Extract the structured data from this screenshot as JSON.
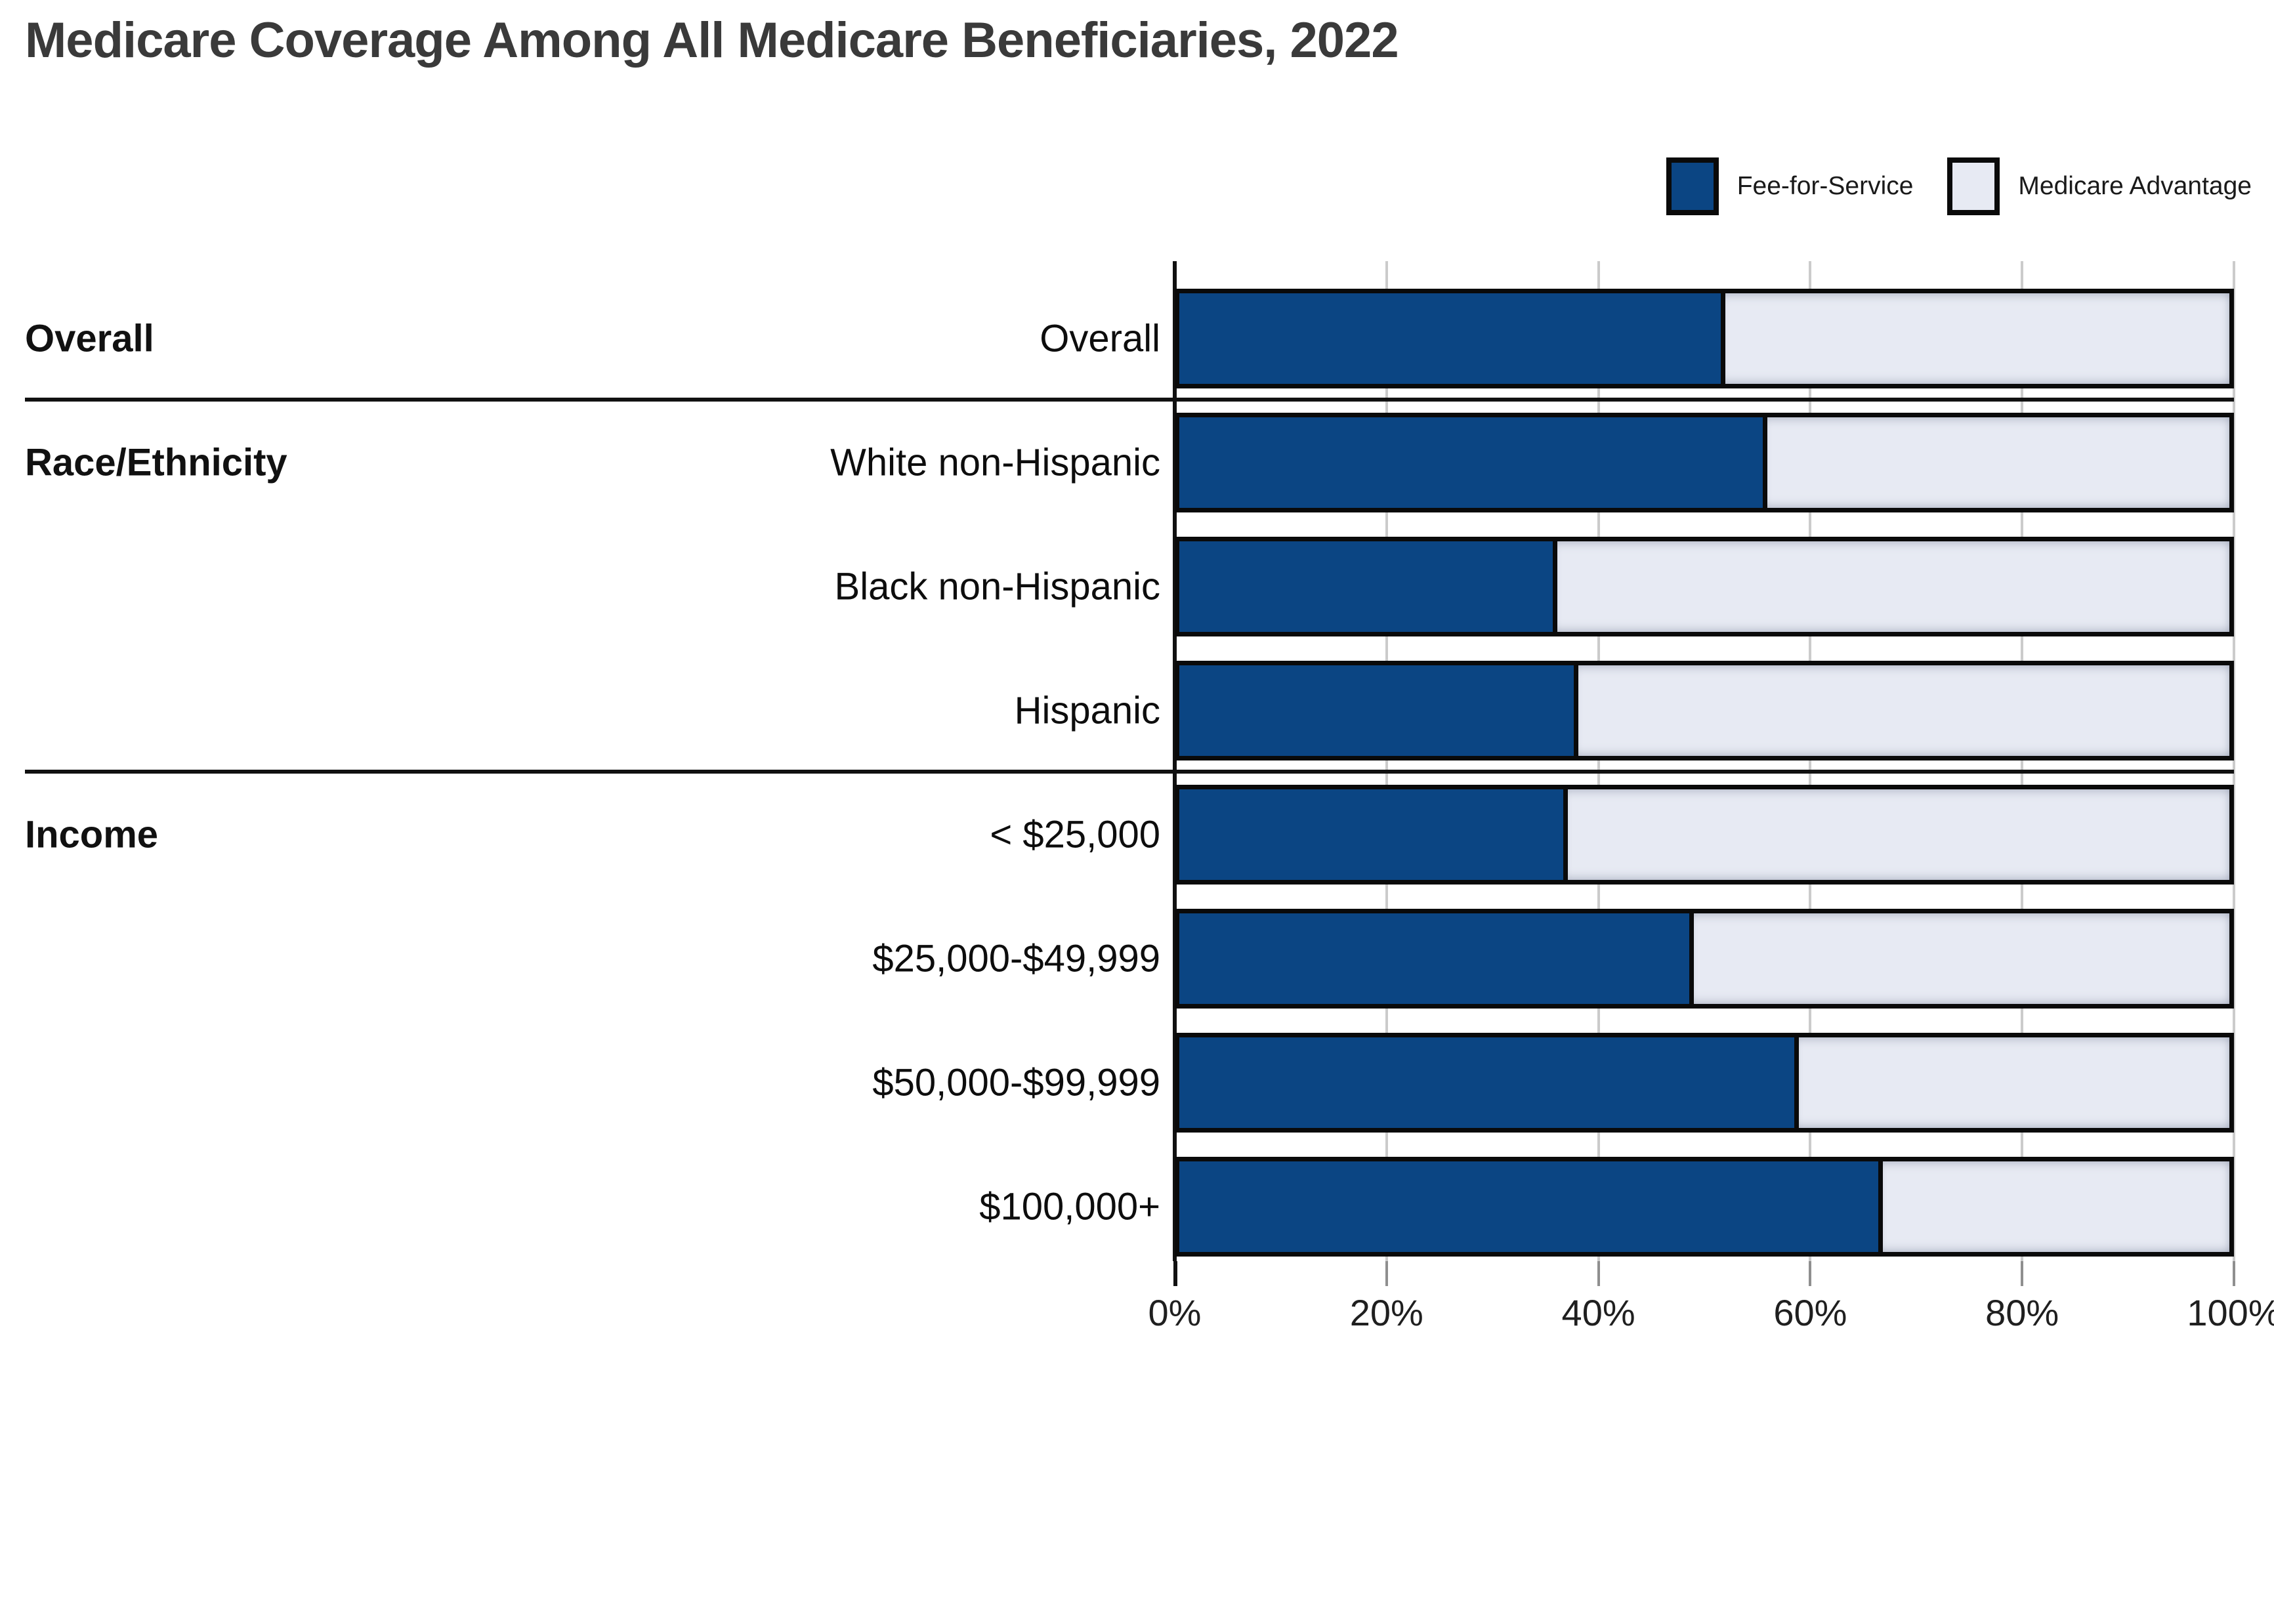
{
  "title": "Medicare Coverage Among All Medicare Beneficiaries, 2022",
  "legend": [
    {
      "label": "Fee-for-Service",
      "color": "#0B4583"
    },
    {
      "label": "Medicare Advantage",
      "color": "#E7EAF3"
    }
  ],
  "colors": {
    "fee_for_service": "#0B4583",
    "medicare_advantage": "#E7EAF3",
    "bar_border": "#0a0a0a",
    "gridline": "#cbcbcb",
    "axis_line": "#111111",
    "title_text": "#3a3a3a"
  },
  "chart_data": {
    "type": "bar",
    "orientation": "horizontal",
    "stacked": true,
    "title": "Medicare Coverage Among All Medicare Beneficiaries, 2022",
    "xlabel": "",
    "ylabel": "",
    "xlim": [
      0,
      100
    ],
    "x_tick_labels": [
      "0%",
      "20%",
      "40%",
      "60%",
      "80%",
      "100%"
    ],
    "x_tick_values": [
      0,
      20,
      40,
      60,
      80,
      100
    ],
    "grid": true,
    "legend_position": "top-right",
    "series_names": [
      "Fee-for-Service",
      "Medicare Advantage"
    ],
    "groups": [
      {
        "name": "Overall",
        "rows": [
          {
            "label": "Overall",
            "fee_for_service": 52,
            "medicare_advantage": 48
          }
        ]
      },
      {
        "name": "Race/Ethnicity",
        "rows": [
          {
            "label": "White non-Hispanic",
            "fee_for_service": 56,
            "medicare_advantage": 44
          },
          {
            "label": "Black non-Hispanic",
            "fee_for_service": 36,
            "medicare_advantage": 64
          },
          {
            "label": "Hispanic",
            "fee_for_service": 38,
            "medicare_advantage": 62
          }
        ]
      },
      {
        "name": "Income",
        "rows": [
          {
            "label": "< $25,000",
            "fee_for_service": 37,
            "medicare_advantage": 63
          },
          {
            "label": "$25,000-$49,999",
            "fee_for_service": 49,
            "medicare_advantage": 51
          },
          {
            "label": "$50,000-$99,999",
            "fee_for_service": 59,
            "medicare_advantage": 41
          },
          {
            "label": "$100,000+",
            "fee_for_service": 67,
            "medicare_advantage": 33
          }
        ]
      }
    ]
  }
}
